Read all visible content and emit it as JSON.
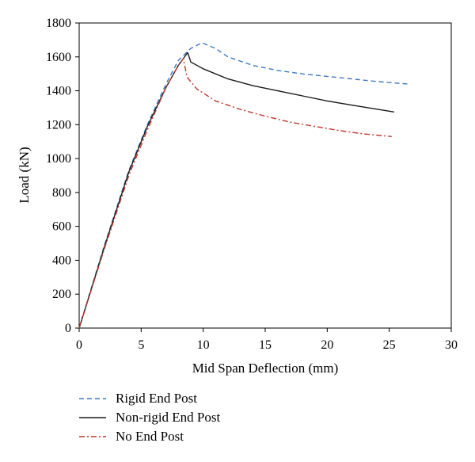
{
  "chart_data": {
    "type": "line",
    "title": "",
    "xlabel": "Mid Span Deflection (mm)",
    "ylabel": "Load (kN)",
    "xlim": [
      0,
      30
    ],
    "ylim": [
      0,
      1800
    ],
    "xticks": [
      0,
      5,
      10,
      15,
      20,
      25,
      30
    ],
    "yticks": [
      0,
      200,
      400,
      600,
      800,
      1000,
      1200,
      1400,
      1600,
      1800
    ],
    "grid": false,
    "legend_position": "bottom-left",
    "series": [
      {
        "name": "Rigid End Post",
        "color": "#3b78c4",
        "dash": "dashed",
        "points": [
          [
            0,
            0
          ],
          [
            2,
            480
          ],
          [
            4,
            930
          ],
          [
            5.5,
            1200
          ],
          [
            7,
            1440
          ],
          [
            8,
            1580
          ],
          [
            9,
            1650
          ],
          [
            9.9,
            1683
          ],
          [
            11,
            1650
          ],
          [
            12,
            1600
          ],
          [
            14,
            1550
          ],
          [
            16,
            1520
          ],
          [
            18,
            1500
          ],
          [
            20,
            1485
          ],
          [
            22,
            1470
          ],
          [
            24,
            1455
          ],
          [
            26.5,
            1440
          ]
        ]
      },
      {
        "name": "Non-rigid End Post",
        "color": "#1a1a1a",
        "dash": "solid",
        "points": [
          [
            0,
            0
          ],
          [
            2,
            470
          ],
          [
            4,
            920
          ],
          [
            5.5,
            1190
          ],
          [
            7,
            1420
          ],
          [
            8,
            1550
          ],
          [
            8.6,
            1610
          ],
          [
            8.75,
            1625
          ],
          [
            9,
            1570
          ],
          [
            10,
            1530
          ],
          [
            12,
            1470
          ],
          [
            14,
            1430
          ],
          [
            16,
            1400
          ],
          [
            18,
            1370
          ],
          [
            20,
            1340
          ],
          [
            22,
            1315
          ],
          [
            25.4,
            1275
          ]
        ]
      },
      {
        "name": "No End Post",
        "color": "#c0392b",
        "dash": "dashdot",
        "points": [
          [
            0,
            0
          ],
          [
            2,
            460
          ],
          [
            4,
            900
          ],
          [
            5.5,
            1170
          ],
          [
            7,
            1420
          ],
          [
            8,
            1550
          ],
          [
            8.4,
            1590
          ],
          [
            8.7,
            1480
          ],
          [
            9.5,
            1410
          ],
          [
            11,
            1340
          ],
          [
            13,
            1290
          ],
          [
            15,
            1250
          ],
          [
            17,
            1215
          ],
          [
            19,
            1190
          ],
          [
            21,
            1165
          ],
          [
            23,
            1145
          ],
          [
            25.2,
            1130
          ]
        ]
      }
    ]
  }
}
